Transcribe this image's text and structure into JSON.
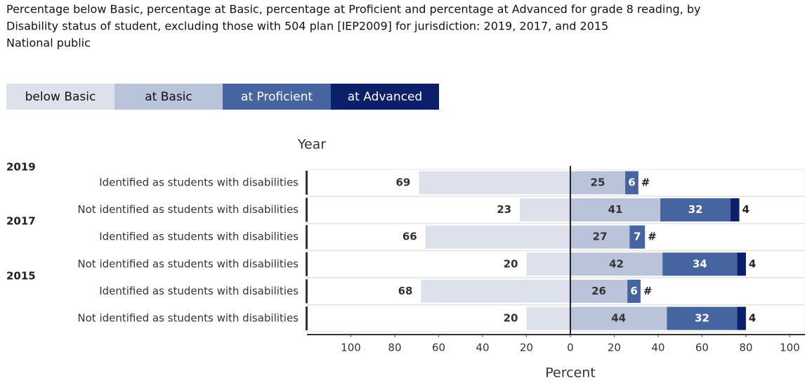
{
  "chart_data": {
    "type": "diverging-bar",
    "title": [
      "Percentage below Basic, percentage at Basic, percentage at Proficient and percentage at Advanced for grade 8 reading, by",
      "Disability status of student, excluding those with 504 plan [IEP2009] for jurisdiction: 2019, 2017, and 2015"
    ],
    "subtitle": "National public",
    "y_axis_label": "Year",
    "x_axis_label": "Percent",
    "groups": [
      "2019",
      "2017",
      "2015"
    ],
    "categories": [
      "Identified as students with disabilities",
      "Not identified as students with disabilities",
      "Identified as students with disabilities",
      "Not identified as students with disabilities",
      "Identified as students with disabilities",
      "Not identified as students with disabilities"
    ],
    "series": [
      {
        "name": "below Basic",
        "color": "#dde1eb",
        "side": "left",
        "values": [
          69,
          23,
          66,
          20,
          68,
          20
        ]
      },
      {
        "name": "at Basic",
        "color": "#b9c3d9",
        "side": "right",
        "values": [
          25,
          41,
          27,
          42,
          26,
          44
        ]
      },
      {
        "name": "at Proficient",
        "color": "#4564a0",
        "side": "right",
        "values": [
          6,
          32,
          7,
          34,
          6,
          32
        ]
      },
      {
        "name": "at Advanced",
        "color": "#0b1f6b",
        "side": "right",
        "values": [
          0,
          4,
          0,
          4,
          0,
          4
        ],
        "value_labels": [
          "#",
          "4",
          "#",
          "4",
          "#",
          "4"
        ]
      }
    ],
    "xlim": [
      -120,
      105
    ],
    "xticks": [
      {
        "value": -100,
        "label": "100"
      },
      {
        "value": -80,
        "label": "80"
      },
      {
        "value": -60,
        "label": "60"
      },
      {
        "value": -40,
        "label": "40"
      },
      {
        "value": -20,
        "label": "20"
      },
      0,
      20,
      40,
      60,
      80,
      100
    ]
  }
}
